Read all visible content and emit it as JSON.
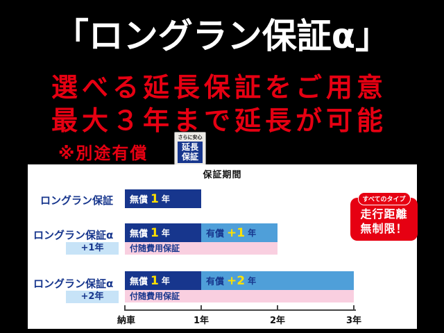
{
  "colors": {
    "red": "#e60012",
    "navy": "#17368d",
    "light-blue": "#4f9fd9",
    "pink": "#f9cfe0",
    "pale-blue": "#c7e3f7",
    "yellow": "#ffe100"
  },
  "header": {
    "title": "「ロングラン保証α」",
    "subtitle1": "選べる延長保証をご用意",
    "subtitle2": "最大３年まで延長が可能",
    "note": "※別途有償",
    "stamp": {
      "top": "さらに安心",
      "line1": "延長",
      "line2": "保証"
    }
  },
  "badge": {
    "pill": "すべてのタイプ",
    "line1": "走行距離",
    "line2": "無制限！"
  },
  "chart_data": {
    "type": "bar",
    "orientation": "horizontal-gantt",
    "title": "保証期間",
    "x_ticks": [
      "納車",
      "1年",
      "2年",
      "3年"
    ],
    "x_range_years": [
      0,
      3
    ],
    "rows": [
      {
        "label": "ロングラン保証",
        "sublabel": "",
        "segments": [
          {
            "fee": "無償",
            "num": "1",
            "unit": "年",
            "start": 0,
            "end": 1,
            "color": "#17368d"
          }
        ]
      },
      {
        "label": "ロングラン保証α",
        "sublabel": "+1年",
        "segments": [
          {
            "fee": "無償",
            "num": "1",
            "unit": "年",
            "start": 0,
            "end": 1,
            "color": "#17368d"
          },
          {
            "fee": "有償",
            "num": "+1",
            "unit": "年",
            "start": 1,
            "end": 2,
            "color": "#4f9fd9"
          }
        ],
        "incidental": {
          "label": "付随費用保証",
          "start": 0,
          "end": 2,
          "color": "#f9cfe0"
        }
      },
      {
        "label": "ロングラン保証α",
        "sublabel": "+2年",
        "segments": [
          {
            "fee": "無償",
            "num": "1",
            "unit": "年",
            "start": 0,
            "end": 1,
            "color": "#17368d"
          },
          {
            "fee": "有償",
            "num": "+2",
            "unit": "年",
            "start": 1,
            "end": 3,
            "color": "#4f9fd9"
          }
        ],
        "incidental": {
          "label": "付随費用保証",
          "start": 0,
          "end": 3,
          "color": "#f9cfe0"
        }
      }
    ]
  }
}
